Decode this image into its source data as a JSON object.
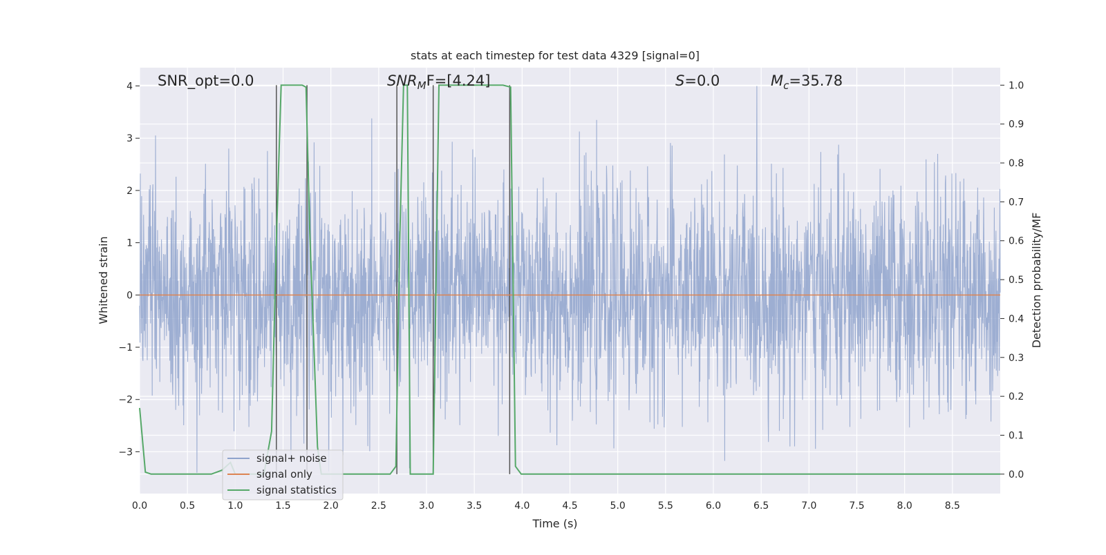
{
  "chart_data": {
    "type": "line",
    "title": "stats at each timestep for test data 4329 [signal=0]",
    "xlabel": "Time (s)",
    "ylabel_left": "Whitened strain",
    "ylabel_right": "Detection probability/MF",
    "xlim": [
      0.0,
      9.0
    ],
    "ylim_left": [
      -3.8,
      4.35
    ],
    "ylim_right": [
      -0.05,
      1.045
    ],
    "x_ticks": [
      "0.0",
      "0.5",
      "1.0",
      "1.5",
      "2.0",
      "2.5",
      "3.0",
      "3.5",
      "4.0",
      "4.5",
      "5.0",
      "5.5",
      "6.0",
      "6.5",
      "7.0",
      "7.5",
      "8.0",
      "8.5"
    ],
    "y_ticks_left": [
      "−3",
      "−2",
      "−1",
      "0",
      "1",
      "2",
      "3",
      "4"
    ],
    "y_ticks_right": [
      "0.0",
      "0.1",
      "0.2",
      "0.3",
      "0.4",
      "0.5",
      "0.6",
      "0.7",
      "0.8",
      "0.9",
      "1.0"
    ],
    "grid": true,
    "legend_position": "lower-left",
    "annotations": {
      "snr_opt": "SNR_opt=0.0",
      "snr_mf_sym": "SNR",
      "snr_mf_sub": "M",
      "snr_mf_rest": "F=[4.24]",
      "s_sym": "S",
      "s_rest": "=0.0",
      "mc_sym": "M",
      "mc_sub": "c",
      "mc_rest": "=35.78"
    },
    "series": [
      {
        "name": "signal+ noise",
        "color": "#8fa3cc",
        "axis": "left",
        "description_values": "dense noise roughly between -3.4 and 4.0, centered at 0",
        "y_range": [
          -3.4,
          4.0
        ]
      },
      {
        "name": "signal only",
        "color": "#dd8452",
        "axis": "left",
        "x": [
          0.0,
          9.0
        ],
        "y": [
          0.0,
          0.0
        ]
      },
      {
        "name": "signal statistics",
        "color": "#55a868",
        "axis": "right",
        "x": [
          0.0,
          0.06,
          0.12,
          0.75,
          0.86,
          0.95,
          1.0,
          1.1,
          1.2,
          1.3,
          1.38,
          1.43,
          1.48,
          1.52,
          1.7,
          1.74,
          1.78,
          1.86,
          1.9,
          2.1,
          2.3,
          2.5,
          2.62,
          2.68,
          2.72,
          2.76,
          2.8,
          2.83,
          2.88,
          3.0,
          3.07,
          3.13,
          3.8,
          3.88,
          3.93,
          3.99,
          4.2,
          9.0
        ],
        "y": [
          0.17,
          0.005,
          0.0,
          0.0,
          0.01,
          0.03,
          0.0,
          0.0,
          0.0,
          0.0,
          0.11,
          0.6,
          1.0,
          1.0,
          1.0,
          0.995,
          0.62,
          0.07,
          0.0,
          0.0,
          0.0,
          0.0,
          0.0,
          0.02,
          0.6,
          1.0,
          1.0,
          0.0,
          0.0,
          0.0,
          0.0,
          1.0,
          1.0,
          0.995,
          0.02,
          0.0,
          0.0,
          0.0
        ]
      }
    ],
    "vertical_markers": {
      "color": "#555555",
      "x": [
        1.43,
        1.75,
        2.69,
        3.07,
        3.87
      ],
      "y_right_range": [
        0.0,
        1.0
      ]
    }
  }
}
